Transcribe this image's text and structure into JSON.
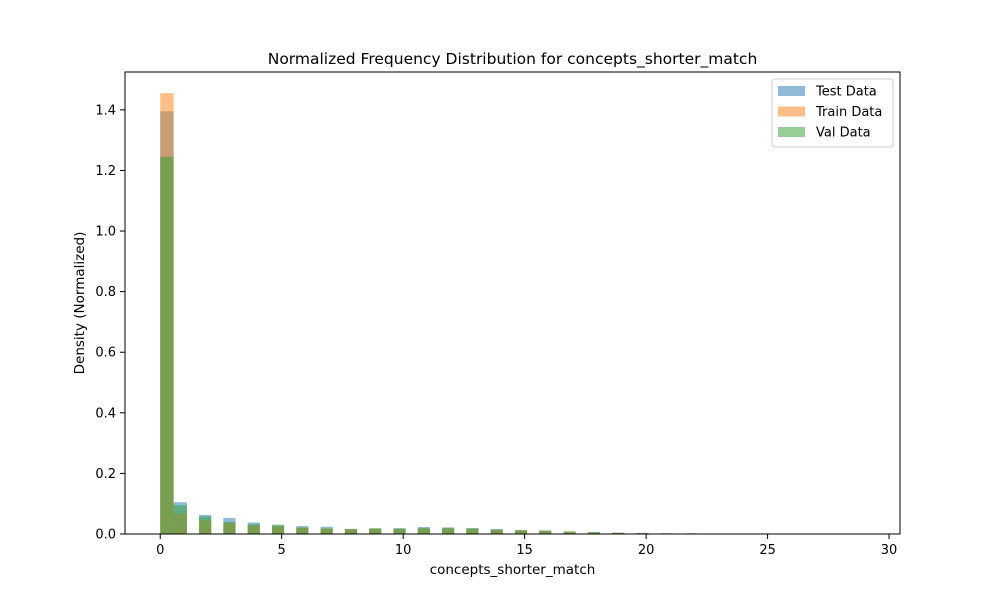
{
  "chart_data": {
    "type": "bar",
    "title": "Normalized Frequency Distribution for concepts_shorter_match",
    "xlabel": "concepts_shorter_match",
    "ylabel": "Density (Normalized)",
    "xlim": [
      -1.45,
      30.45
    ],
    "ylim": [
      0,
      1.525
    ],
    "xticks": [
      0,
      5,
      10,
      15,
      20,
      25,
      30
    ],
    "yticks": [
      0.0,
      0.2,
      0.4,
      0.6,
      0.8,
      1.0,
      1.2,
      1.4
    ],
    "grid": false,
    "legend_position": "top-right",
    "series": [
      {
        "name": "Test Data",
        "color": "#1f77b4",
        "bins": [
          [
            0.0,
            0.55,
            1.395
          ],
          [
            0.55,
            1.1,
            0.105
          ],
          [
            1.6,
            2.1,
            0.063
          ],
          [
            2.6,
            3.1,
            0.053
          ],
          [
            3.6,
            4.1,
            0.038
          ],
          [
            4.6,
            5.1,
            0.028
          ],
          [
            5.6,
            6.1,
            0.026
          ],
          [
            6.6,
            7.1,
            0.024
          ],
          [
            7.6,
            8.1,
            0.017
          ],
          [
            8.6,
            9.1,
            0.018
          ],
          [
            9.6,
            10.1,
            0.019
          ],
          [
            10.6,
            11.1,
            0.023
          ],
          [
            11.6,
            12.1,
            0.02
          ],
          [
            12.6,
            13.1,
            0.019
          ],
          [
            13.6,
            14.1,
            0.016
          ],
          [
            14.6,
            15.1,
            0.012
          ],
          [
            15.6,
            16.1,
            0.012
          ],
          [
            16.6,
            17.1,
            0.005
          ],
          [
            17.6,
            18.1,
            0.006
          ],
          [
            18.6,
            19.1,
            0.004
          ],
          [
            19.6,
            20.1,
            0.003
          ],
          [
            20.6,
            21.1,
            0.002
          ],
          [
            21.6,
            22.1,
            0.002
          ]
        ]
      },
      {
        "name": "Train Data",
        "color": "#ff7f0e",
        "bins": [
          [
            0.0,
            0.55,
            1.455
          ],
          [
            0.55,
            1.1,
            0.068
          ],
          [
            1.6,
            2.1,
            0.045
          ],
          [
            2.6,
            3.1,
            0.035
          ],
          [
            3.6,
            4.1,
            0.028
          ],
          [
            4.6,
            5.1,
            0.025
          ],
          [
            5.6,
            6.1,
            0.021
          ],
          [
            6.6,
            7.1,
            0.018
          ],
          [
            7.6,
            8.1,
            0.016
          ],
          [
            8.6,
            9.1,
            0.017
          ],
          [
            9.6,
            10.1,
            0.016
          ],
          [
            10.6,
            11.1,
            0.017
          ],
          [
            11.6,
            12.1,
            0.017
          ],
          [
            12.6,
            13.1,
            0.016
          ],
          [
            13.6,
            14.1,
            0.014
          ],
          [
            14.6,
            15.1,
            0.012
          ],
          [
            15.6,
            16.1,
            0.01
          ],
          [
            16.6,
            17.1,
            0.007
          ],
          [
            17.6,
            18.1,
            0.005
          ],
          [
            18.6,
            19.1,
            0.004
          ],
          [
            19.6,
            20.1,
            0.003
          ],
          [
            20.6,
            21.1,
            0.002
          ],
          [
            21.6,
            22.1,
            0.001
          ]
        ]
      },
      {
        "name": "Val Data",
        "color": "#2ca02c",
        "bins": [
          [
            0.0,
            0.55,
            1.245
          ],
          [
            0.55,
            1.1,
            0.095
          ],
          [
            1.6,
            2.1,
            0.058
          ],
          [
            2.6,
            3.1,
            0.04
          ],
          [
            3.6,
            4.1,
            0.032
          ],
          [
            4.6,
            5.1,
            0.031
          ],
          [
            5.6,
            6.1,
            0.021
          ],
          [
            6.6,
            7.1,
            0.018
          ],
          [
            7.6,
            8.1,
            0.016
          ],
          [
            8.6,
            9.1,
            0.019
          ],
          [
            9.6,
            10.1,
            0.018
          ],
          [
            10.6,
            11.1,
            0.019
          ],
          [
            11.6,
            12.1,
            0.022
          ],
          [
            12.6,
            13.1,
            0.019
          ],
          [
            13.6,
            14.1,
            0.015
          ],
          [
            14.6,
            15.1,
            0.013
          ],
          [
            15.6,
            16.1,
            0.01
          ],
          [
            16.6,
            17.1,
            0.009
          ],
          [
            17.6,
            18.1,
            0.006
          ],
          [
            18.6,
            19.1,
            0.004
          ],
          [
            19.6,
            20.1,
            0.003
          ],
          [
            20.6,
            21.1,
            0.002
          ],
          [
            21.6,
            22.1,
            0.002
          ]
        ]
      }
    ]
  }
}
